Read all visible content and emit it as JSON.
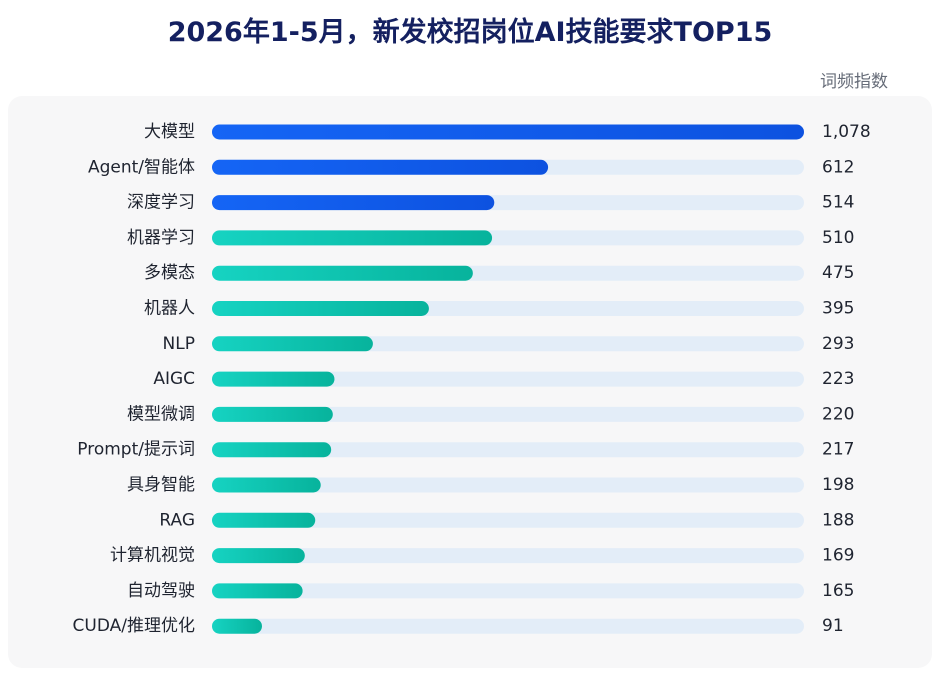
{
  "header": {
    "title": "2026年1-5月，新发校招岗位AI技能要求TOP15",
    "unit_label": "词频指数"
  },
  "colors": {
    "blue_start": "#1565f5",
    "blue_end": "#0d52e0",
    "teal_start": "#16d3c2",
    "teal_end": "#07b39c",
    "track": "#e3edf8"
  },
  "chart_data": {
    "type": "bar",
    "orientation": "horizontal",
    "title": "2026年1-5月，新发校招岗位AI技能要求TOP15",
    "unit": "词频指数",
    "categories": [
      "大模型",
      "Agent/智能体",
      "深度学习",
      "机器学习",
      "多模态",
      "机器人",
      "NLP",
      "AIGC",
      "模型微调",
      "Prompt/提示词",
      "具身智能",
      "RAG",
      "计算机视觉",
      "自动驾驶",
      "CUDA/推理优化"
    ],
    "values": [
      1078,
      612,
      514,
      510,
      475,
      395,
      293,
      223,
      220,
      217,
      198,
      188,
      169,
      165,
      91
    ],
    "value_labels": [
      "1,078",
      "612",
      "514",
      "510",
      "475",
      "395",
      "293",
      "223",
      "220",
      "217",
      "198",
      "188",
      "169",
      "165",
      "91"
    ],
    "bar_colors": [
      "blue",
      "blue",
      "blue",
      "teal",
      "teal",
      "teal",
      "teal",
      "teal",
      "teal",
      "teal",
      "teal",
      "teal",
      "teal",
      "teal",
      "teal"
    ],
    "xlim": [
      0,
      1078
    ],
    "grid": false,
    "legend": "none"
  }
}
